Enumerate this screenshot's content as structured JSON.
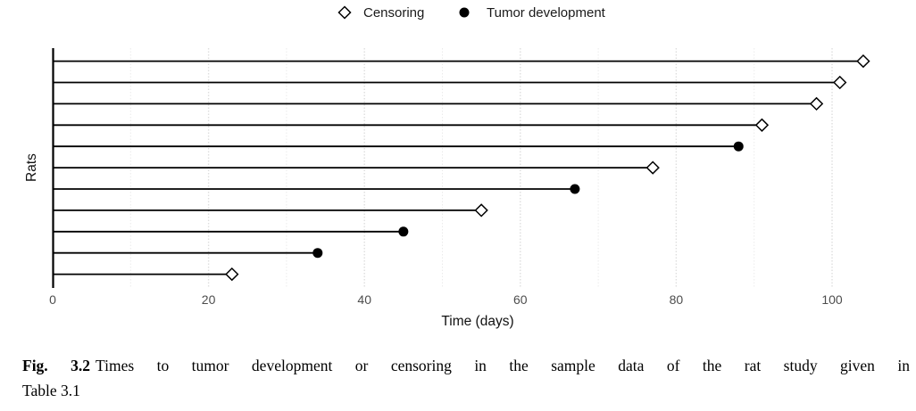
{
  "legend": {
    "censoring_label": "Censoring",
    "tumor_label": "Tumor development"
  },
  "chart_data": {
    "type": "lollipop",
    "title": "",
    "xlabel": "Time (days)",
    "ylabel": "Rats",
    "x_ticks": [
      0,
      20,
      40,
      60,
      80,
      100
    ],
    "xlim": [
      0,
      109
    ],
    "grid": "vertical only, light dotted gray, minor lines every 10 days",
    "legend_position": "top-center",
    "legend": [
      {
        "label": "Censoring",
        "marker": "open-diamond"
      },
      {
        "label": "Tumor development",
        "marker": "filled-circle"
      }
    ],
    "rats": [
      {
        "row": 1,
        "time": 104,
        "event": "censoring"
      },
      {
        "row": 2,
        "time": 101,
        "event": "censoring"
      },
      {
        "row": 3,
        "time": 98,
        "event": "censoring"
      },
      {
        "row": 4,
        "time": 91,
        "event": "censoring"
      },
      {
        "row": 5,
        "time": 88,
        "event": "tumor"
      },
      {
        "row": 6,
        "time": 77,
        "event": "censoring"
      },
      {
        "row": 7,
        "time": 67,
        "event": "tumor"
      },
      {
        "row": 8,
        "time": 55,
        "event": "censoring"
      },
      {
        "row": 9,
        "time": 45,
        "event": "tumor"
      },
      {
        "row": 10,
        "time": 34,
        "event": "tumor"
      },
      {
        "row": 11,
        "time": 23,
        "event": "censoring"
      }
    ]
  },
  "caption": {
    "label": "Fig. 3.2",
    "line1": "Times to tumor development or censoring in the sample data of the rat study given in",
    "line2": "Table 3.1"
  },
  "colors": {
    "line": "#000000",
    "marker_fill": "#000000",
    "diamond_fill": "#ffffff",
    "grid_major": "#dedede",
    "grid_minor": "#ebebeb",
    "tick_label": "#4d4d4d",
    "text": "#111111"
  }
}
